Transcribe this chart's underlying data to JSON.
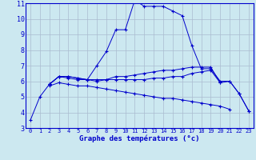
{
  "title": "Graphe des températures (°c)",
  "background_color": "#cce8f0",
  "grid_color": "#aabbd0",
  "line_color": "#0000cc",
  "x_labels": [
    "0",
    "1",
    "2",
    "3",
    "4",
    "5",
    "6",
    "7",
    "8",
    "9",
    "10",
    "11",
    "12",
    "13",
    "14",
    "15",
    "16",
    "17",
    "18",
    "19",
    "20",
    "21",
    "22",
    "23"
  ],
  "y_min": 3,
  "y_max": 11,
  "y_ticks": [
    3,
    4,
    5,
    6,
    7,
    8,
    9,
    10,
    11
  ],
  "series": {
    "line1": [
      3.5,
      5.0,
      5.8,
      6.3,
      6.3,
      6.2,
      6.1,
      7.0,
      7.9,
      9.3,
      9.3,
      11.2,
      10.8,
      10.8,
      10.8,
      10.5,
      10.2,
      8.3,
      6.8,
      6.8,
      6.0,
      6.0,
      5.2,
      4.1
    ],
    "line2": [
      null,
      null,
      5.8,
      6.3,
      6.2,
      6.1,
      6.1,
      6.0,
      6.1,
      6.3,
      6.3,
      6.4,
      6.5,
      6.6,
      6.7,
      6.7,
      6.8,
      6.9,
      6.9,
      6.9,
      5.9,
      null,
      null,
      null
    ],
    "line3": [
      null,
      null,
      5.7,
      5.9,
      5.8,
      5.7,
      5.7,
      5.6,
      5.5,
      5.4,
      5.3,
      5.2,
      5.1,
      5.0,
      4.9,
      4.9,
      4.8,
      4.7,
      4.6,
      4.5,
      4.4,
      4.2,
      null,
      null
    ],
    "line4": [
      null,
      null,
      5.8,
      6.3,
      6.3,
      6.2,
      6.1,
      6.1,
      6.1,
      6.1,
      6.1,
      6.1,
      6.1,
      6.2,
      6.2,
      6.3,
      6.3,
      6.5,
      6.6,
      6.7,
      5.9,
      6.0,
      5.2,
      4.1
    ]
  }
}
